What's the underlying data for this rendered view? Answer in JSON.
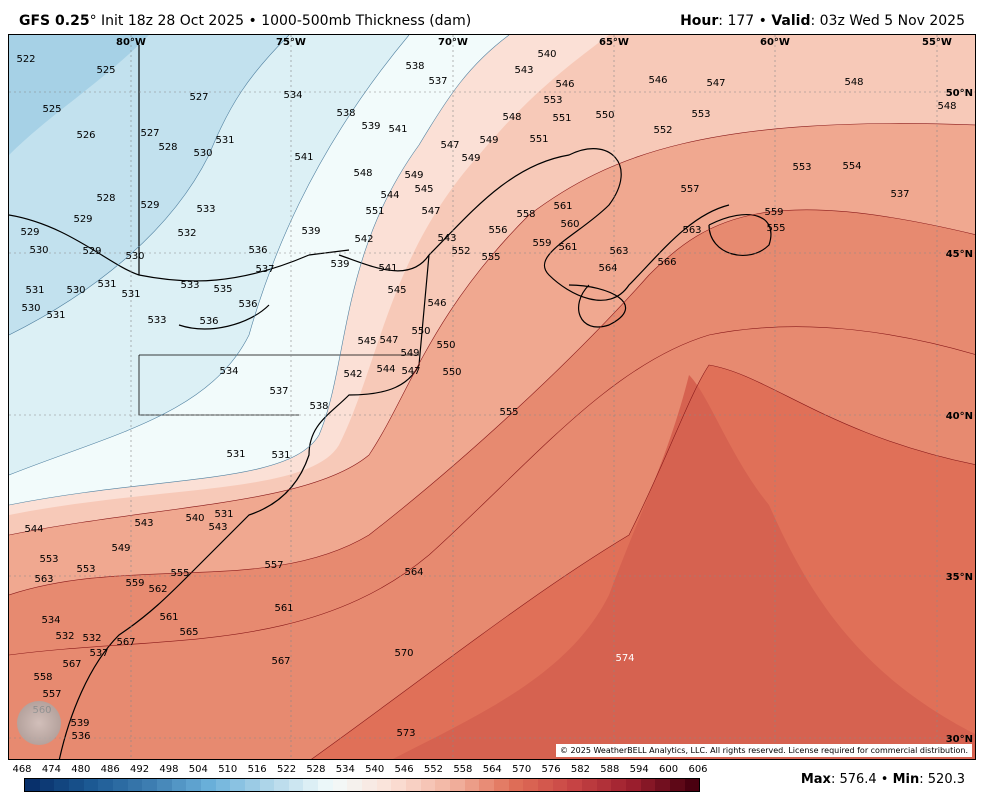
{
  "header": {
    "model": "GFS 0.25",
    "degree": "°",
    "init": " Init 18z 28 Oct 2025",
    "sep": " • ",
    "product": "1000-500mb Thickness (dam)",
    "hour_label": "Hour",
    "hour_value": ": 177",
    "valid_label": "Valid",
    "valid_value": ": 03z Wed 5 Nov 2025"
  },
  "map": {
    "lon_labels": [
      "80°W",
      "75°W",
      "70°W",
      "65°W",
      "60°W",
      "55°W"
    ],
    "lat_labels": [
      "50°N",
      "45°N",
      "40°N",
      "35°N",
      "30°N"
    ],
    "contour_labels": [
      "522",
      "525",
      "527",
      "534",
      "537",
      "538",
      "540",
      "543",
      "546",
      "546",
      "547",
      "548",
      "548",
      "525",
      "526",
      "527",
      "528",
      "530",
      "531",
      "538",
      "539",
      "541",
      "547",
      "549",
      "549",
      "548",
      "551",
      "550",
      "553",
      "552",
      "551",
      "553",
      "553",
      "554",
      "537",
      "541",
      "548",
      "549",
      "545",
      "544",
      "551",
      "547",
      "543",
      "542",
      "539",
      "536",
      "533",
      "532",
      "529",
      "528",
      "529",
      "529",
      "529",
      "530",
      "530",
      "531",
      "530",
      "531",
      "533",
      "535",
      "536",
      "537",
      "539",
      "541",
      "545",
      "546",
      "550",
      "549",
      "547",
      "545",
      "542",
      "544",
      "547",
      "550",
      "550",
      "552",
      "555",
      "556",
      "558",
      "560",
      "559",
      "561",
      "563",
      "564",
      "566",
      "561",
      "557",
      "563",
      "559",
      "555",
      "530",
      "531",
      "531",
      "533",
      "536",
      "534",
      "537",
      "538",
      "555",
      "564",
      "561",
      "567",
      "570",
      "573",
      "574",
      "544",
      "549",
      "543",
      "540",
      "543",
      "553",
      "553",
      "555",
      "557",
      "559",
      "561",
      "562",
      "563",
      "565",
      "567",
      "567",
      "558",
      "557",
      "560",
      "539",
      "536",
      "537",
      "534",
      "532",
      "532",
      "531",
      "531",
      "531"
    ],
    "copyright": "© 2025 WeatherBELL Analytics, LLC. All rights reserved. License required for commercial distribution.",
    "watermark": "WeatherBELL"
  },
  "colorbar": {
    "ticks": [
      "468",
      "474",
      "480",
      "486",
      "492",
      "498",
      "504",
      "510",
      "516",
      "522",
      "528",
      "534",
      "540",
      "546",
      "552",
      "558",
      "564",
      "570",
      "576",
      "582",
      "588",
      "594",
      "600",
      "606"
    ],
    "color_stops": [
      "#08306b",
      "#1c5a94",
      "#3f7fb2",
      "#6cb2dc",
      "#b3d8ea",
      "#f2fbfb",
      "#fbe0d6",
      "#f2b3a0",
      "#e07058",
      "#c84545",
      "#9c1f2e",
      "#4a0010"
    ]
  },
  "stats": {
    "max_label": "Max",
    "max_value": ": 576.4",
    "min_label": "Min",
    "min_value": ": 520.3",
    "sep": " • "
  }
}
